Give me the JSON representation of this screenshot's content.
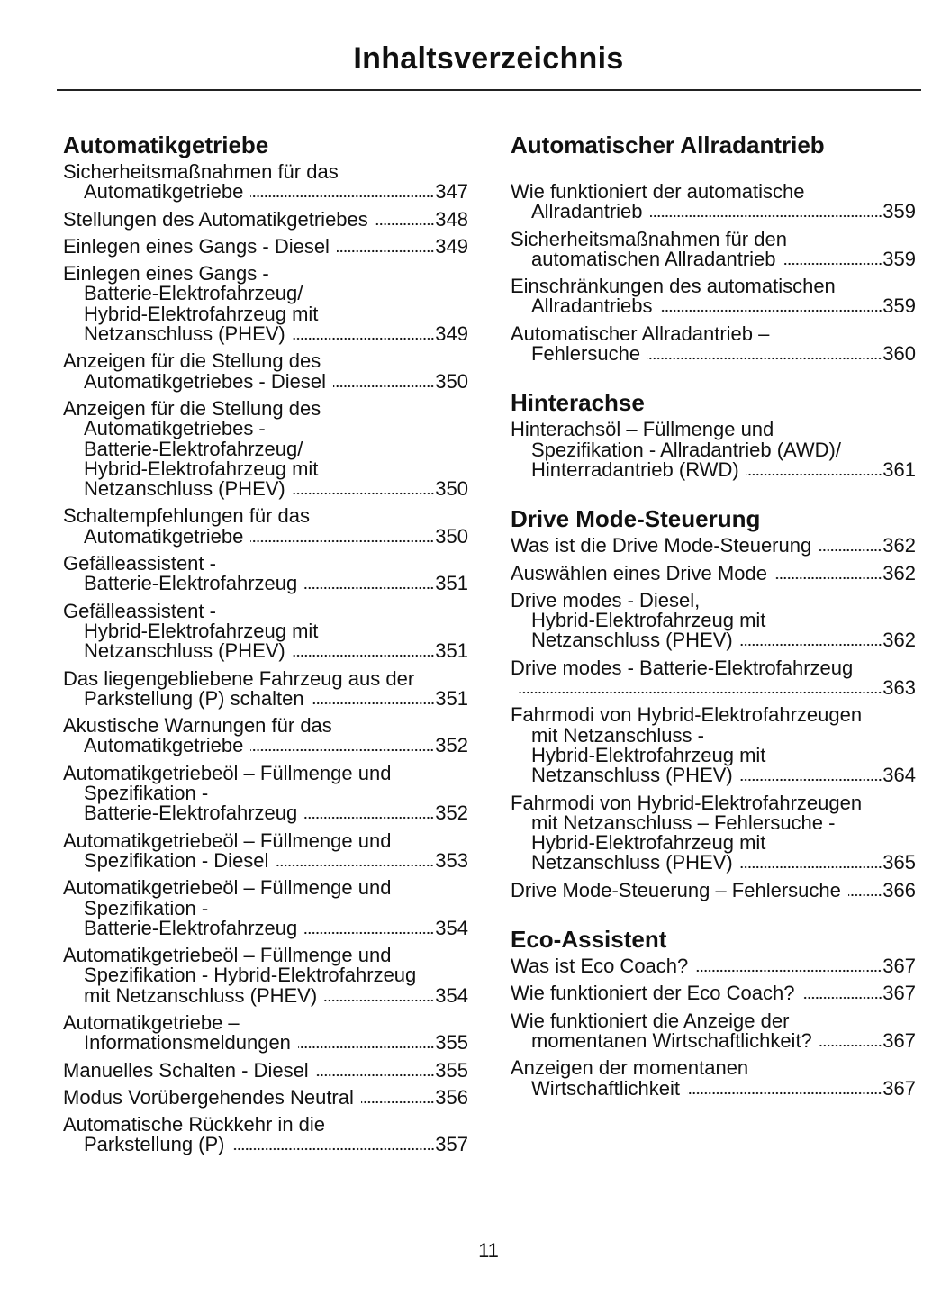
{
  "header": {
    "title": "Inhaltsverzeichnis"
  },
  "columns": [
    {
      "sections": [
        {
          "title": "Automatikgetriebe",
          "entries": [
            {
              "lines": [
                "Sicherheitsmaßnahmen für das",
                "Automatikgetriebe"
              ],
              "page": 347
            },
            {
              "lines": [
                "Stellungen des Automatikgetriebes"
              ],
              "page": 348
            },
            {
              "lines": [
                "Einlegen eines Gangs - Diesel"
              ],
              "page": 349
            },
            {
              "lines": [
                "Einlegen eines Gangs -",
                "Batterie-Elektrofahrzeug/",
                "Hybrid-Elektrofahrzeug mit",
                "Netzanschluss (PHEV)"
              ],
              "page": 349
            },
            {
              "lines": [
                "Anzeigen für die Stellung des",
                "Automatikgetriebes - Diesel"
              ],
              "page": 350
            },
            {
              "lines": [
                "Anzeigen für die Stellung des",
                "Automatikgetriebes -",
                "Batterie-Elektrofahrzeug/",
                "Hybrid-Elektrofahrzeug mit",
                "Netzanschluss (PHEV)"
              ],
              "page": 350
            },
            {
              "lines": [
                "Schaltempfehlungen für das",
                "Automatikgetriebe"
              ],
              "page": 350
            },
            {
              "lines": [
                "Gefälleassistent -",
                "Batterie-Elektrofahrzeug"
              ],
              "page": 351
            },
            {
              "lines": [
                "Gefälleassistent -",
                "Hybrid-Elektrofahrzeug mit",
                "Netzanschluss (PHEV)"
              ],
              "page": 351
            },
            {
              "lines": [
                "Das liegengebliebene Fahrzeug aus der",
                "Parkstellung (P) schalten"
              ],
              "page": 351
            },
            {
              "lines": [
                "Akustische Warnungen für das",
                "Automatikgetriebe"
              ],
              "page": 352
            },
            {
              "lines": [
                "Automatikgetriebeöl – Füllmenge und",
                "Spezifikation -",
                "Batterie-Elektrofahrzeug"
              ],
              "page": 352
            },
            {
              "lines": [
                "Automatikgetriebeöl – Füllmenge und",
                "Spezifikation - Diesel"
              ],
              "page": 353
            },
            {
              "lines": [
                "Automatikgetriebeöl – Füllmenge und",
                "Spezifikation -",
                "Batterie-Elektrofahrzeug"
              ],
              "page": 354
            },
            {
              "lines": [
                "Automatikgetriebeöl – Füllmenge und",
                "Spezifikation - Hybrid-Elektrofahrzeug",
                "mit Netzanschluss (PHEV)"
              ],
              "page": 354
            },
            {
              "lines": [
                "Automatikgetriebe –",
                "Informationsmeldungen"
              ],
              "page": 355
            },
            {
              "lines": [
                "Manuelles Schalten - Diesel"
              ],
              "page": 355
            },
            {
              "lines": [
                "Modus Vorübergehendes Neutral"
              ],
              "page": 356
            },
            {
              "lines": [
                "Automatische Rückkehr in die",
                "Parkstellung (P)"
              ],
              "page": 357
            }
          ]
        }
      ]
    },
    {
      "sections": [
        {
          "title": "Automatischer Allradantrieb",
          "entries": [
            {
              "lines": [
                "Wie funktioniert der automatische",
                "Allradantrieb"
              ],
              "page": 359
            },
            {
              "lines": [
                "Sicherheitsmaßnahmen für den",
                "automatischen Allradantrieb"
              ],
              "page": 359
            },
            {
              "lines": [
                "Einschränkungen des automatischen",
                "Allradantriebs"
              ],
              "page": 359
            },
            {
              "lines": [
                "Automatischer Allradantrieb –",
                "Fehlersuche"
              ],
              "page": 360
            }
          ]
        },
        {
          "title": "Hinterachse",
          "entries": [
            {
              "lines": [
                "Hinterachsöl – Füllmenge und",
                "Spezifikation - Allradantrieb (AWD)/",
                "Hinterradantrieb (RWD)"
              ],
              "page": 361
            }
          ]
        },
        {
          "title": "Drive Mode-Steuerung",
          "entries": [
            {
              "lines": [
                "Was ist die Drive Mode-Steuerung"
              ],
              "page": 362
            },
            {
              "lines": [
                "Auswählen eines Drive Mode"
              ],
              "page": 362
            },
            {
              "lines": [
                "Drive modes - Diesel,",
                "Hybrid-Elektrofahrzeug mit",
                "Netzanschluss (PHEV)"
              ],
              "page": 362
            },
            {
              "lines": [
                "Drive modes - Batterie-Elektrofahrzeug"
              ],
              "page": 363
            },
            {
              "lines": [
                "Fahrmodi von Hybrid-Elektrofahrzeugen",
                "mit Netzanschluss -",
                "Hybrid-Elektrofahrzeug mit",
                "Netzanschluss (PHEV)"
              ],
              "page": 364
            },
            {
              "lines": [
                "Fahrmodi von Hybrid-Elektrofahrzeugen",
                "mit Netzanschluss – Fehlersuche -",
                "Hybrid-Elektrofahrzeug mit",
                "Netzanschluss (PHEV)"
              ],
              "page": 365
            },
            {
              "lines": [
                "Drive Mode-Steuerung – Fehlersuche"
              ],
              "page": 366
            }
          ]
        },
        {
          "title": "Eco-Assistent",
          "entries": [
            {
              "lines": [
                "Was ist Eco Coach?"
              ],
              "page": 367
            },
            {
              "lines": [
                "Wie funktioniert der Eco Coach?"
              ],
              "page": 367
            },
            {
              "lines": [
                "Wie funktioniert die Anzeige der",
                "momentanen Wirtschaftlichkeit?"
              ],
              "page": 367
            },
            {
              "lines": [
                "Anzeigen der momentanen",
                "Wirtschaftlichkeit"
              ],
              "page": 367
            }
          ]
        }
      ]
    }
  ],
  "footer": {
    "page_number": 11
  }
}
